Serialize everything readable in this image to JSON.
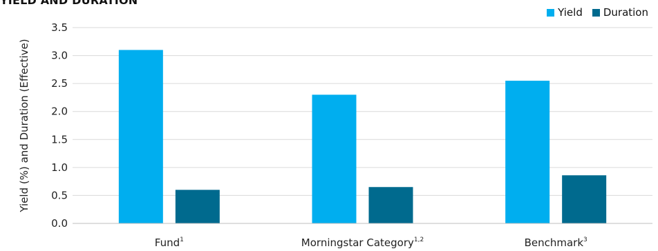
{
  "chart_data": {
    "type": "bar",
    "title": "YIELD AND DURATION",
    "ylabel": "Yield (%) and Duration (Effective)",
    "xlabel": "",
    "ylim": [
      0,
      3.5
    ],
    "yticks": [
      "0.0",
      "0.5",
      "1.0",
      "1.5",
      "2.0",
      "2.5",
      "3.0",
      "3.5"
    ],
    "grid": true,
    "legend_position": "top-right",
    "categories": [
      {
        "label": "Fund",
        "sup": "1"
      },
      {
        "label": "Morningstar Category",
        "sup": "1,2"
      },
      {
        "label": "Benchmark",
        "sup": "3"
      }
    ],
    "series": [
      {
        "name": "Yield",
        "color": "#00AEEF",
        "values": [
          3.1,
          2.3,
          2.55
        ]
      },
      {
        "name": "Duration",
        "color": "#006A8E",
        "values": [
          0.6,
          0.65,
          0.86
        ]
      }
    ]
  }
}
